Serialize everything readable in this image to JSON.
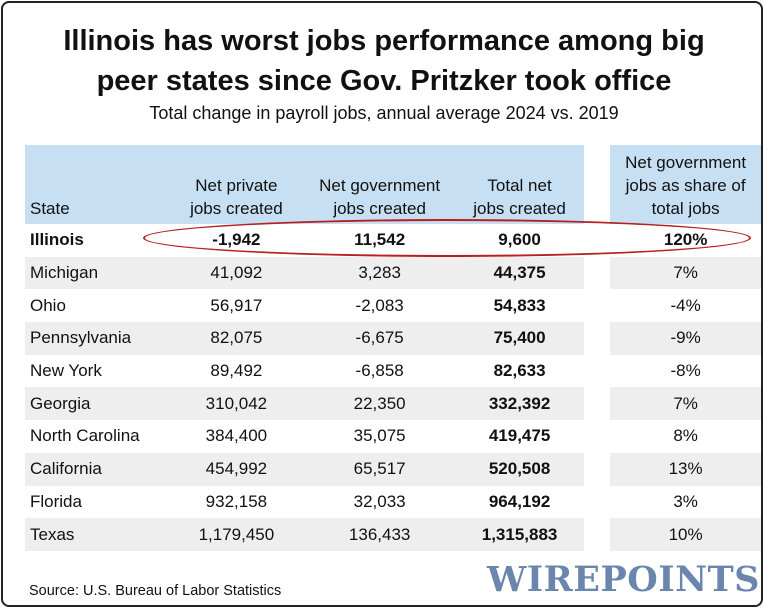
{
  "header": {
    "title_line1": "Illinois has worst jobs performance among big",
    "title_line2": "peer states since Gov. Pritzker took office",
    "subtitle": "Total change in payroll jobs, annual average 2024 vs. 2019"
  },
  "chart_data": {
    "type": "table",
    "columns": [
      [
        "State"
      ],
      [
        "Net private",
        "jobs created"
      ],
      [
        "Net government",
        "jobs created"
      ],
      [
        "Total net",
        "jobs created"
      ],
      [
        "Net government",
        "jobs as share of",
        "total jobs"
      ]
    ],
    "rows": [
      [
        "Illinois",
        "-1,942",
        "11,542",
        "9,600",
        "120%"
      ],
      [
        "Michigan",
        "41,092",
        "3,283",
        "44,375",
        "7%"
      ],
      [
        "Ohio",
        "56,917",
        "-2,083",
        "54,833",
        "-4%"
      ],
      [
        "Pennsylvania",
        "82,075",
        "-6,675",
        "75,400",
        "-9%"
      ],
      [
        "New York",
        "89,492",
        "-6,858",
        "82,633",
        "-8%"
      ],
      [
        "Georgia",
        "310,042",
        "22,350",
        "332,392",
        "7%"
      ],
      [
        "North Carolina",
        "384,400",
        "35,075",
        "419,475",
        "8%"
      ],
      [
        "California",
        "454,992",
        "65,517",
        "520,508",
        "13%"
      ],
      [
        "Florida",
        "932,158",
        "32,033",
        "964,192",
        "3%"
      ],
      [
        "Texas",
        "1,179,450",
        "136,433",
        "1,315,883",
        "10%"
      ]
    ],
    "highlight_row": "Illinois",
    "header_color": "#c7dff2",
    "stripe_color": "#eeeeee",
    "highlight_color": "#b82020"
  },
  "footer": {
    "source": "Source: U.S. Bureau of Labor Statistics",
    "logo": "WIREPOINTS"
  }
}
